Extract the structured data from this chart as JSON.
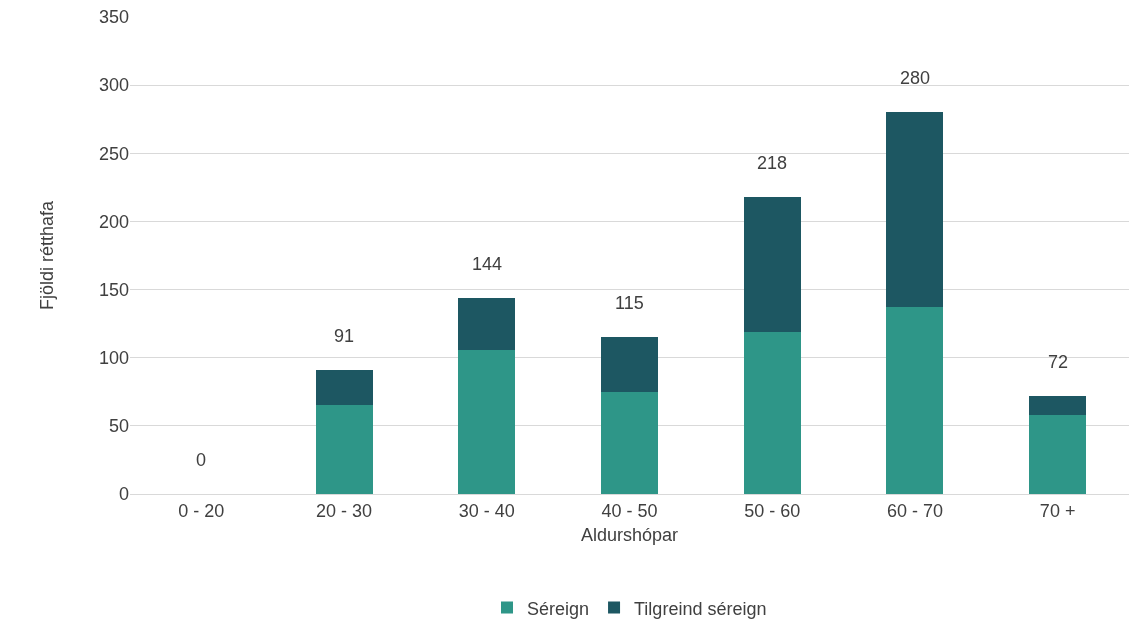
{
  "chart_data": {
    "type": "bar",
    "stacked": true,
    "xlabel": "Aldurshópar",
    "ylabel": "Fjöldi rétthafa",
    "categories": [
      "0 - 20",
      "20 - 30",
      "30 - 40",
      "40 - 50",
      "50 - 60",
      "60 - 70",
      "70 +"
    ],
    "series": [
      {
        "name": "Séreign",
        "color": "#2e9688",
        "values": [
          0,
          65,
          106,
          75,
          119,
          137,
          58
        ]
      },
      {
        "name": "Tilgreind séreign",
        "color": "#1d5762",
        "values": [
          0,
          26,
          38,
          40,
          99,
          143,
          14
        ]
      }
    ],
    "totals": [
      "0",
      "91",
      "144",
      "115",
      "218",
      "280",
      "72"
    ],
    "ylim": [
      0,
      350
    ],
    "yticks": [
      0,
      50,
      100,
      150,
      200,
      250,
      300,
      350
    ],
    "grid": "y",
    "legend": "bottom"
  }
}
